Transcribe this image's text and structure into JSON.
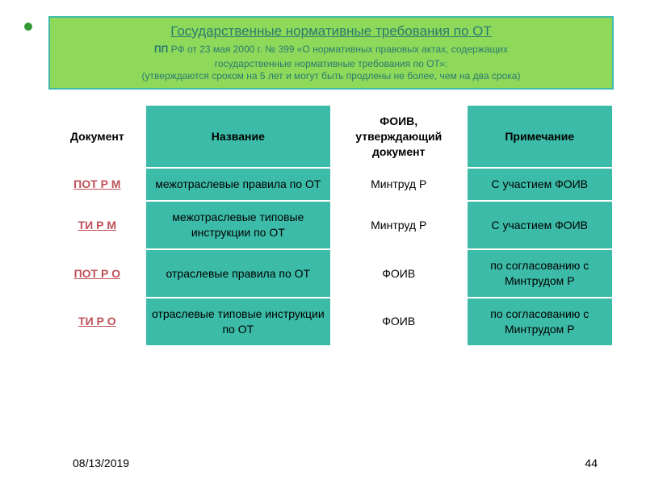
{
  "colors": {
    "header_bg": "#8ed95a",
    "header_text": "#2a7b6f",
    "teal_cell": "#3cbca8",
    "doc_link": "#c05058",
    "body_text": "#000000"
  },
  "fonts": {
    "title_main_size": 17,
    "subtitle_size": 12,
    "table_header_size": 14,
    "table_body_size": 14,
    "footer_size": 14
  },
  "header": {
    "title": "Государственные нормативные требования по ОТ",
    "line2_prefix": "ПП ",
    "line2": "РФ от 23 мая 2000 г. № 399 «О нормативных правовых актах, содержащих",
    "line3": "государственные нормативные требования по ОТ»:",
    "line4": "(утверждаются сроком на 5 лет и могут быть продлены не более, чем на два срока)"
  },
  "table": {
    "col_widths": [
      "17%",
      "33%",
      "24%",
      "26%"
    ],
    "columns": [
      "Документ",
      "Название",
      "ФОИВ, утверждающий документ",
      "Примечание"
    ],
    "header_is_teal": [
      false,
      true,
      false,
      true
    ],
    "rows": [
      {
        "doc": "ПОТ  Р  М",
        "name": "межотраслевые правила по ОТ",
        "foiv": "Минтруд Р",
        "note": "С участием ФОИВ"
      },
      {
        "doc": "ТИ  Р  М",
        "name": "межотраслевые типовые инструкции по ОТ",
        "foiv": "Минтруд Р",
        "note": "С участием ФОИВ"
      },
      {
        "doc": "ПОТ  Р  О",
        "name": "отраслевые правила по ОТ",
        "foiv": "ФОИВ",
        "note": "по согласованию с Минтрудом Р"
      },
      {
        "doc": "ТИ  Р  О",
        "name": "отраслевые типовые инструкции по ОТ",
        "foiv": "ФОИВ",
        "note": "по согласованию с Минтрудом Р"
      }
    ]
  },
  "footer": {
    "date": "08/13/2019",
    "page": "44"
  }
}
